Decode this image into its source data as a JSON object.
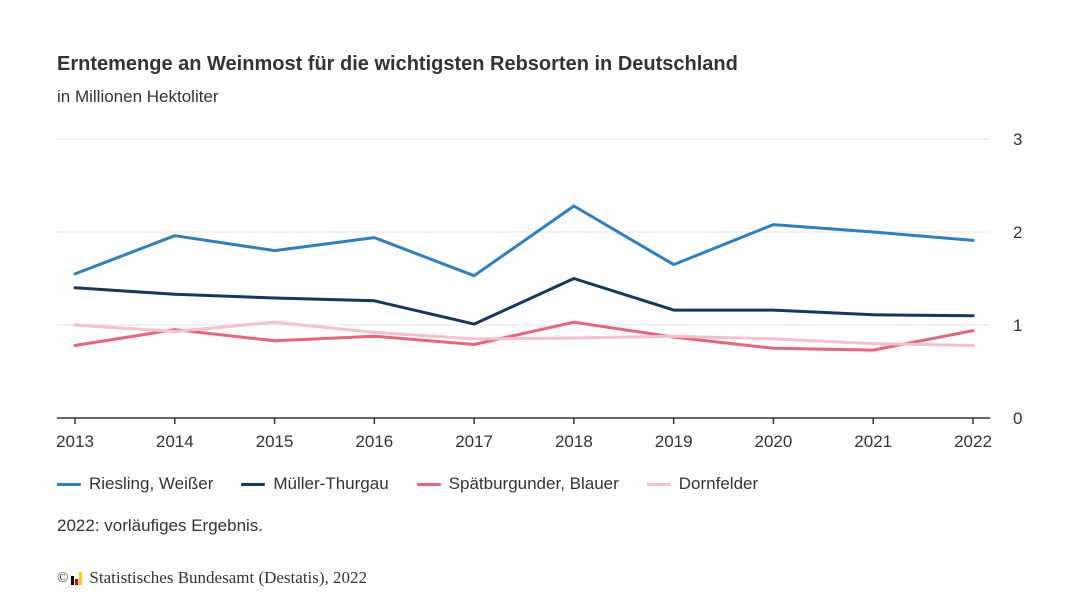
{
  "chart_data": {
    "type": "line",
    "title": "Erntemenge an Weinmost für die wichtigsten Rebsorten in Deutschland",
    "subtitle": "in Millionen Hektoliter",
    "xlabel": "",
    "ylabel": "",
    "x": [
      "2013",
      "2014",
      "2015",
      "2016",
      "2017",
      "2018",
      "2019",
      "2020",
      "2021",
      "2022"
    ],
    "ylim": [
      0,
      3
    ],
    "yticks": [
      0,
      1,
      2,
      3
    ],
    "series": [
      {
        "name": "Riesling, Weißer",
        "color": "#2d7fc0",
        "values": [
          1.55,
          1.96,
          1.8,
          1.94,
          1.53,
          2.28,
          1.65,
          2.08,
          2.0,
          1.91
        ]
      },
      {
        "name": "Müller-Thurgau",
        "color": "#13385a",
        "values": [
          1.4,
          1.33,
          1.29,
          1.26,
          1.01,
          1.5,
          1.16,
          1.16,
          1.11,
          1.1
        ]
      },
      {
        "name": "Spätburgunder, Blauer",
        "color": "#e8647a",
        "values": [
          0.78,
          0.95,
          0.83,
          0.88,
          0.79,
          1.03,
          0.87,
          0.75,
          0.73,
          0.94
        ]
      },
      {
        "name": "Dornfelder",
        "color": "#f6bfcc",
        "values": [
          1.0,
          0.93,
          1.03,
          0.92,
          0.85,
          0.86,
          0.88,
          0.85,
          0.8,
          0.78
        ]
      }
    ],
    "legend_position": "bottom-left"
  },
  "note": "2022: vorläufiges Ergebnis.",
  "source": {
    "copyright_symbol": "©",
    "text": "Statistisches Bundesamt (Destatis), 2022",
    "logo_colors": [
      "#000000",
      "#dd0000",
      "#ffcc00"
    ]
  }
}
